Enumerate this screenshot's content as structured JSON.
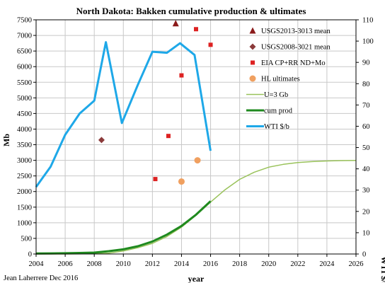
{
  "chart_data": {
    "type": "line",
    "title": "North Dakota: Bakken cumulative production & ultimates",
    "xlabel": "year",
    "ylabel": "Mb",
    "y2label": "WTI $/b",
    "credit": "Jean Laherrere  Dec 2016",
    "xlim": [
      2004,
      2026
    ],
    "ylim": [
      0,
      7500
    ],
    "y2lim": [
      0,
      110
    ],
    "x_ticks": [
      2004,
      2006,
      2008,
      2010,
      2012,
      2014,
      2016,
      2018,
      2020,
      2022,
      2024,
      2026
    ],
    "y_ticks": [
      0,
      500,
      1000,
      1500,
      2000,
      2500,
      3000,
      3500,
      4000,
      4500,
      5000,
      5500,
      6000,
      6500,
      7000,
      7500
    ],
    "y2_ticks": [
      0,
      10,
      20,
      30,
      40,
      50,
      60,
      70,
      80,
      90,
      100,
      110
    ],
    "grid": true,
    "legend_position": "top-right",
    "series": [
      {
        "name": "USGS2013-3013 mean",
        "kind": "scatter",
        "marker": "triangle",
        "color": "#8b1a1a",
        "axis": "left",
        "points": [
          [
            2013.6,
            7380
          ]
        ]
      },
      {
        "name": "USGS2008-3021 mean",
        "kind": "scatter",
        "marker": "diamond",
        "color": "#8b3a3a",
        "axis": "left",
        "points": [
          [
            2008.5,
            3650
          ]
        ]
      },
      {
        "name": "EIA CP+RR ND+Mo",
        "kind": "scatter",
        "marker": "square",
        "color": "#dd2222",
        "axis": "left",
        "points": [
          [
            2012.2,
            2400
          ],
          [
            2013.1,
            3780
          ],
          [
            2014.0,
            5720
          ],
          [
            2015.0,
            7200
          ],
          [
            2016.0,
            6700
          ]
        ]
      },
      {
        "name": "HL ultimates",
        "kind": "scatter",
        "marker": "circle",
        "color": "#f0a060",
        "axis": "left",
        "points": [
          [
            2014.0,
            2320
          ],
          [
            2015.1,
            3000
          ]
        ]
      },
      {
        "name": "U=3 Gb",
        "kind": "line",
        "color": "#99c25a",
        "width": 1.5,
        "axis": "left",
        "points": [
          [
            2004,
            0
          ],
          [
            2006,
            1
          ],
          [
            2008,
            8
          ],
          [
            2009,
            30
          ],
          [
            2010,
            95
          ],
          [
            2011,
            200
          ],
          [
            2012,
            340
          ],
          [
            2013,
            560
          ],
          [
            2014,
            860
          ],
          [
            2015,
            1240
          ],
          [
            2016,
            1660
          ],
          [
            2017,
            2060
          ],
          [
            2018,
            2390
          ],
          [
            2019,
            2620
          ],
          [
            2020,
            2780
          ],
          [
            2021,
            2870
          ],
          [
            2022,
            2930
          ],
          [
            2023,
            2960
          ],
          [
            2024,
            2980
          ],
          [
            2025,
            2990
          ],
          [
            2026,
            2995
          ]
        ]
      },
      {
        "name": "cum prod",
        "kind": "line",
        "color": "#1f8a1f",
        "width": 3,
        "axis": "left",
        "points": [
          [
            2004,
            15
          ],
          [
            2005,
            20
          ],
          [
            2006,
            25
          ],
          [
            2007,
            35
          ],
          [
            2008,
            45
          ],
          [
            2009,
            90
          ],
          [
            2010,
            150
          ],
          [
            2011,
            250
          ],
          [
            2012,
            400
          ],
          [
            2013,
            620
          ],
          [
            2014,
            900
          ],
          [
            2015,
            1260
          ],
          [
            2016,
            1690
          ]
        ]
      },
      {
        "name": "WTI $/b",
        "kind": "line",
        "color": "#1ea8e8",
        "width": 3,
        "axis": "right",
        "points": [
          [
            2004,
            31.5
          ],
          [
            2005,
            41
          ],
          [
            2006,
            56
          ],
          [
            2007,
            66
          ],
          [
            2008,
            72
          ],
          [
            2008.8,
            99.5
          ],
          [
            2009.9,
            61.5
          ],
          [
            2011,
            79.5
          ],
          [
            2012,
            95
          ],
          [
            2013,
            94.5
          ],
          [
            2013.9,
            99
          ],
          [
            2014.9,
            93.5
          ],
          [
            2016.0,
            48.5
          ]
        ]
      }
    ]
  }
}
